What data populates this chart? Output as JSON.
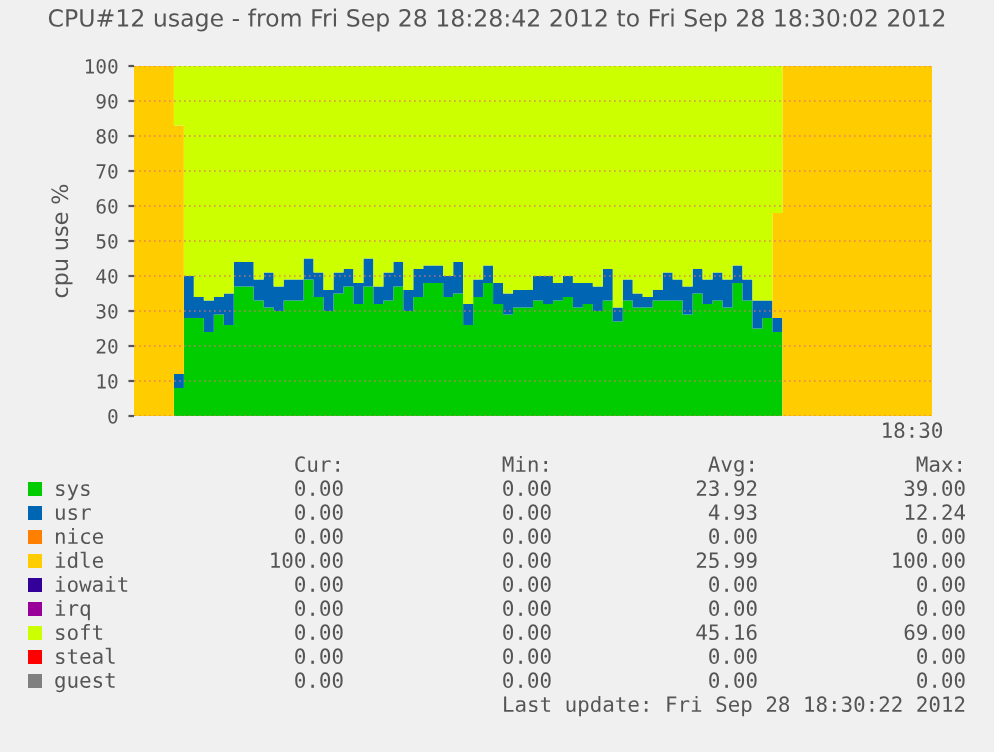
{
  "chart_data": {
    "type": "area",
    "stacked": true,
    "title": "CPU#12 usage - from Fri Sep 28 18:28:42 2012 to Fri Sep 28 18:30:02 2012",
    "ylabel": "cpu use %",
    "categories": [
      null,
      null,
      null,
      null,
      null,
      null,
      null,
      null,
      null,
      null,
      null,
      null,
      null,
      null,
      null,
      null,
      null,
      null,
      null,
      null,
      null,
      null,
      null,
      null,
      null,
      null,
      null,
      null,
      null,
      null,
      null,
      null,
      null,
      null,
      null,
      null,
      null,
      null,
      null,
      null,
      null,
      null,
      null,
      null,
      null,
      null,
      null,
      null,
      null,
      null,
      null,
      null,
      null,
      null,
      null,
      null,
      null,
      null,
      null,
      null,
      null,
      null,
      null,
      null,
      null,
      null,
      null,
      null,
      null,
      null,
      null,
      null,
      null,
      null,
      null,
      null,
      null,
      null,
      null,
      null
    ],
    "series": [
      {
        "name": "sys",
        "color": "#00cc00",
        "values": [
          0,
          0,
          0,
          0,
          8,
          28,
          28,
          24,
          29,
          26,
          37,
          37,
          33,
          31,
          30,
          33,
          33,
          39,
          34,
          30,
          35,
          37,
          32,
          37,
          32,
          33,
          37,
          30,
          34,
          38,
          38,
          34,
          35,
          26,
          34,
          38,
          32,
          29,
          31,
          31,
          33,
          32,
          33,
          34,
          31,
          32,
          30,
          33,
          27,
          33,
          31,
          31,
          33,
          33,
          33,
          29,
          35,
          32,
          33,
          31,
          38,
          33,
          25,
          28,
          24,
          0,
          0,
          0,
          0,
          0,
          0,
          0,
          0,
          0,
          0,
          0,
          0,
          0,
          0,
          0
        ]
      },
      {
        "name": "usr",
        "color": "#0066b3",
        "values": [
          0,
          0,
          0,
          0,
          4,
          12,
          6,
          9,
          5,
          9,
          7,
          7,
          6,
          10,
          7,
          6,
          6,
          6,
          7,
          6,
          6,
          5,
          6,
          8,
          5,
          8,
          7,
          6,
          8,
          5,
          5,
          6,
          9,
          6,
          5,
          5,
          6,
          6,
          5,
          5,
          7,
          8,
          5,
          6,
          7,
          6,
          7,
          9,
          4,
          6,
          4,
          3,
          3,
          8,
          6,
          8,
          7,
          7,
          8,
          8,
          5,
          6,
          8,
          5,
          4,
          0,
          0,
          0,
          0,
          0,
          0,
          0,
          0,
          0,
          0,
          0,
          0,
          0,
          0,
          0
        ]
      },
      {
        "name": "nice",
        "color": "#ff8000",
        "values": [
          null,
          null,
          null,
          null,
          null,
          null,
          null,
          null,
          null,
          null,
          null,
          null,
          null,
          null,
          null,
          null,
          null,
          null,
          null,
          null,
          null,
          null,
          null,
          null,
          null,
          null,
          null,
          null,
          null,
          null,
          null,
          null,
          null,
          null,
          null,
          null,
          null,
          null,
          null,
          null,
          null,
          null,
          null,
          null,
          null,
          null,
          null,
          null,
          null,
          null,
          null,
          null,
          null,
          null,
          null,
          null,
          null,
          null,
          null,
          null,
          null,
          null,
          null,
          null,
          null,
          null,
          null,
          null,
          null,
          null,
          null,
          null,
          null,
          null,
          null,
          null,
          null,
          null,
          null,
          null
        ]
      },
      {
        "name": "idle",
        "color": "#ffcc00",
        "values": [
          100,
          100,
          100,
          100,
          71,
          0,
          0,
          0,
          0,
          0,
          0,
          0,
          0,
          0,
          0,
          0,
          0,
          0,
          0,
          0,
          0,
          0,
          0,
          0,
          0,
          0,
          0,
          0,
          0,
          0,
          0,
          0,
          0,
          0,
          0,
          0,
          0,
          0,
          0,
          0,
          0,
          0,
          0,
          0,
          0,
          0,
          0,
          0,
          0,
          0,
          0,
          0,
          0,
          0,
          0,
          0,
          0,
          0,
          0,
          0,
          0,
          0,
          0,
          0,
          30,
          100,
          100,
          100,
          100,
          100,
          100,
          100,
          100,
          100,
          100,
          100,
          100,
          100,
          100,
          100
        ]
      },
      {
        "name": "iowait",
        "color": "#330099",
        "values": [
          null,
          null,
          null,
          null,
          null,
          null,
          null,
          null,
          null,
          null,
          null,
          null,
          null,
          null,
          null,
          null,
          null,
          null,
          null,
          null,
          null,
          null,
          null,
          null,
          null,
          null,
          null,
          null,
          null,
          null,
          null,
          null,
          null,
          null,
          null,
          null,
          null,
          null,
          null,
          null,
          null,
          null,
          null,
          null,
          null,
          null,
          null,
          null,
          null,
          null,
          null,
          null,
          null,
          null,
          null,
          null,
          null,
          null,
          null,
          null,
          null,
          null,
          null,
          null,
          null,
          null,
          null,
          null,
          null,
          null,
          null,
          null,
          null,
          null,
          null,
          null,
          null,
          null,
          null,
          null
        ]
      },
      {
        "name": "irq",
        "color": "#990099",
        "values": [
          null,
          null,
          null,
          null,
          null,
          null,
          null,
          null,
          null,
          null,
          null,
          null,
          null,
          null,
          null,
          null,
          null,
          null,
          null,
          null,
          null,
          null,
          null,
          null,
          null,
          null,
          null,
          null,
          null,
          null,
          null,
          null,
          null,
          null,
          null,
          null,
          null,
          null,
          null,
          null,
          null,
          null,
          null,
          null,
          null,
          null,
          null,
          null,
          null,
          null,
          null,
          null,
          null,
          null,
          null,
          null,
          null,
          null,
          null,
          null,
          null,
          null,
          null,
          null,
          null,
          null,
          null,
          null,
          null,
          null,
          null,
          null,
          null,
          null,
          null,
          null,
          null,
          null,
          null,
          null
        ]
      },
      {
        "name": "soft",
        "color": "#ccff00",
        "values": [
          0,
          0,
          0,
          0,
          17,
          60,
          66,
          67,
          66,
          65,
          56,
          56,
          61,
          59,
          63,
          61,
          61,
          55,
          59,
          64,
          59,
          58,
          62,
          55,
          63,
          59,
          56,
          64,
          58,
          57,
          57,
          60,
          56,
          68,
          61,
          57,
          62,
          65,
          64,
          64,
          60,
          60,
          62,
          60,
          62,
          62,
          63,
          58,
          69,
          61,
          65,
          66,
          64,
          59,
          61,
          63,
          58,
          61,
          59,
          61,
          57,
          61,
          67,
          67,
          42,
          0,
          0,
          0,
          0,
          0,
          0,
          0,
          0,
          0,
          0,
          0,
          0,
          0,
          0,
          0
        ]
      },
      {
        "name": "steal",
        "color": "#ff0000",
        "values": [
          null,
          null,
          null,
          null,
          null,
          null,
          null,
          null,
          null,
          null,
          null,
          null,
          null,
          null,
          null,
          null,
          null,
          null,
          null,
          null,
          null,
          null,
          null,
          null,
          null,
          null,
          null,
          null,
          null,
          null,
          null,
          null,
          null,
          null,
          null,
          null,
          null,
          null,
          null,
          null,
          null,
          null,
          null,
          null,
          null,
          null,
          null,
          null,
          null,
          null,
          null,
          null,
          null,
          null,
          null,
          null,
          null,
          null,
          null,
          null,
          null,
          null,
          null,
          null,
          null,
          null,
          null,
          null,
          null,
          null,
          null,
          null,
          null,
          null,
          null,
          null,
          null,
          null,
          null,
          null
        ]
      },
      {
        "name": "guest",
        "color": "#808080",
        "values": [
          null,
          null,
          null,
          null,
          null,
          null,
          null,
          null,
          null,
          null,
          null,
          null,
          null,
          null,
          null,
          null,
          null,
          null,
          null,
          null,
          null,
          null,
          null,
          null,
          null,
          null,
          null,
          null,
          null,
          null,
          null,
          null,
          null,
          null,
          null,
          null,
          null,
          null,
          null,
          null,
          null,
          null,
          null,
          null,
          null,
          null,
          null,
          null,
          null,
          null,
          null,
          null,
          null,
          null,
          null,
          null,
          null,
          null,
          null,
          null,
          null,
          null,
          null,
          null,
          null,
          null,
          null,
          null,
          null,
          null,
          null,
          null,
          null,
          null,
          null,
          null,
          null,
          null,
          null,
          null
        ]
      }
    ],
    "ylim": [
      0,
      100
    ],
    "yticks": [
      0,
      10,
      20,
      30,
      40,
      50,
      60,
      70,
      80,
      90,
      100
    ],
    "grid": "y",
    "legend": "bottom",
    "annotations": [
      "18:30",
      "Cur:",
      "Min:",
      "Avg:",
      "Max:",
      "0.00",
      "0.00",
      "23.92",
      "39.00",
      "0.00",
      "0.00",
      "4.93",
      "12.24",
      "0.00",
      "0.00",
      "0.00",
      "0.00",
      "100.00",
      "0.00",
      "25.99",
      "100.00",
      "0.00",
      "0.00",
      "0.00",
      "0.00",
      "0.00",
      "0.00",
      "0.00",
      "0.00",
      "0.00",
      "0.00",
      "45.16",
      "69.00",
      "0.00",
      "0.00",
      "0.00",
      "0.00",
      "0.00",
      "0.00",
      "0.00",
      "0.00",
      "Last update: Fri Sep 28 18:30:22 2012"
    ]
  }
}
